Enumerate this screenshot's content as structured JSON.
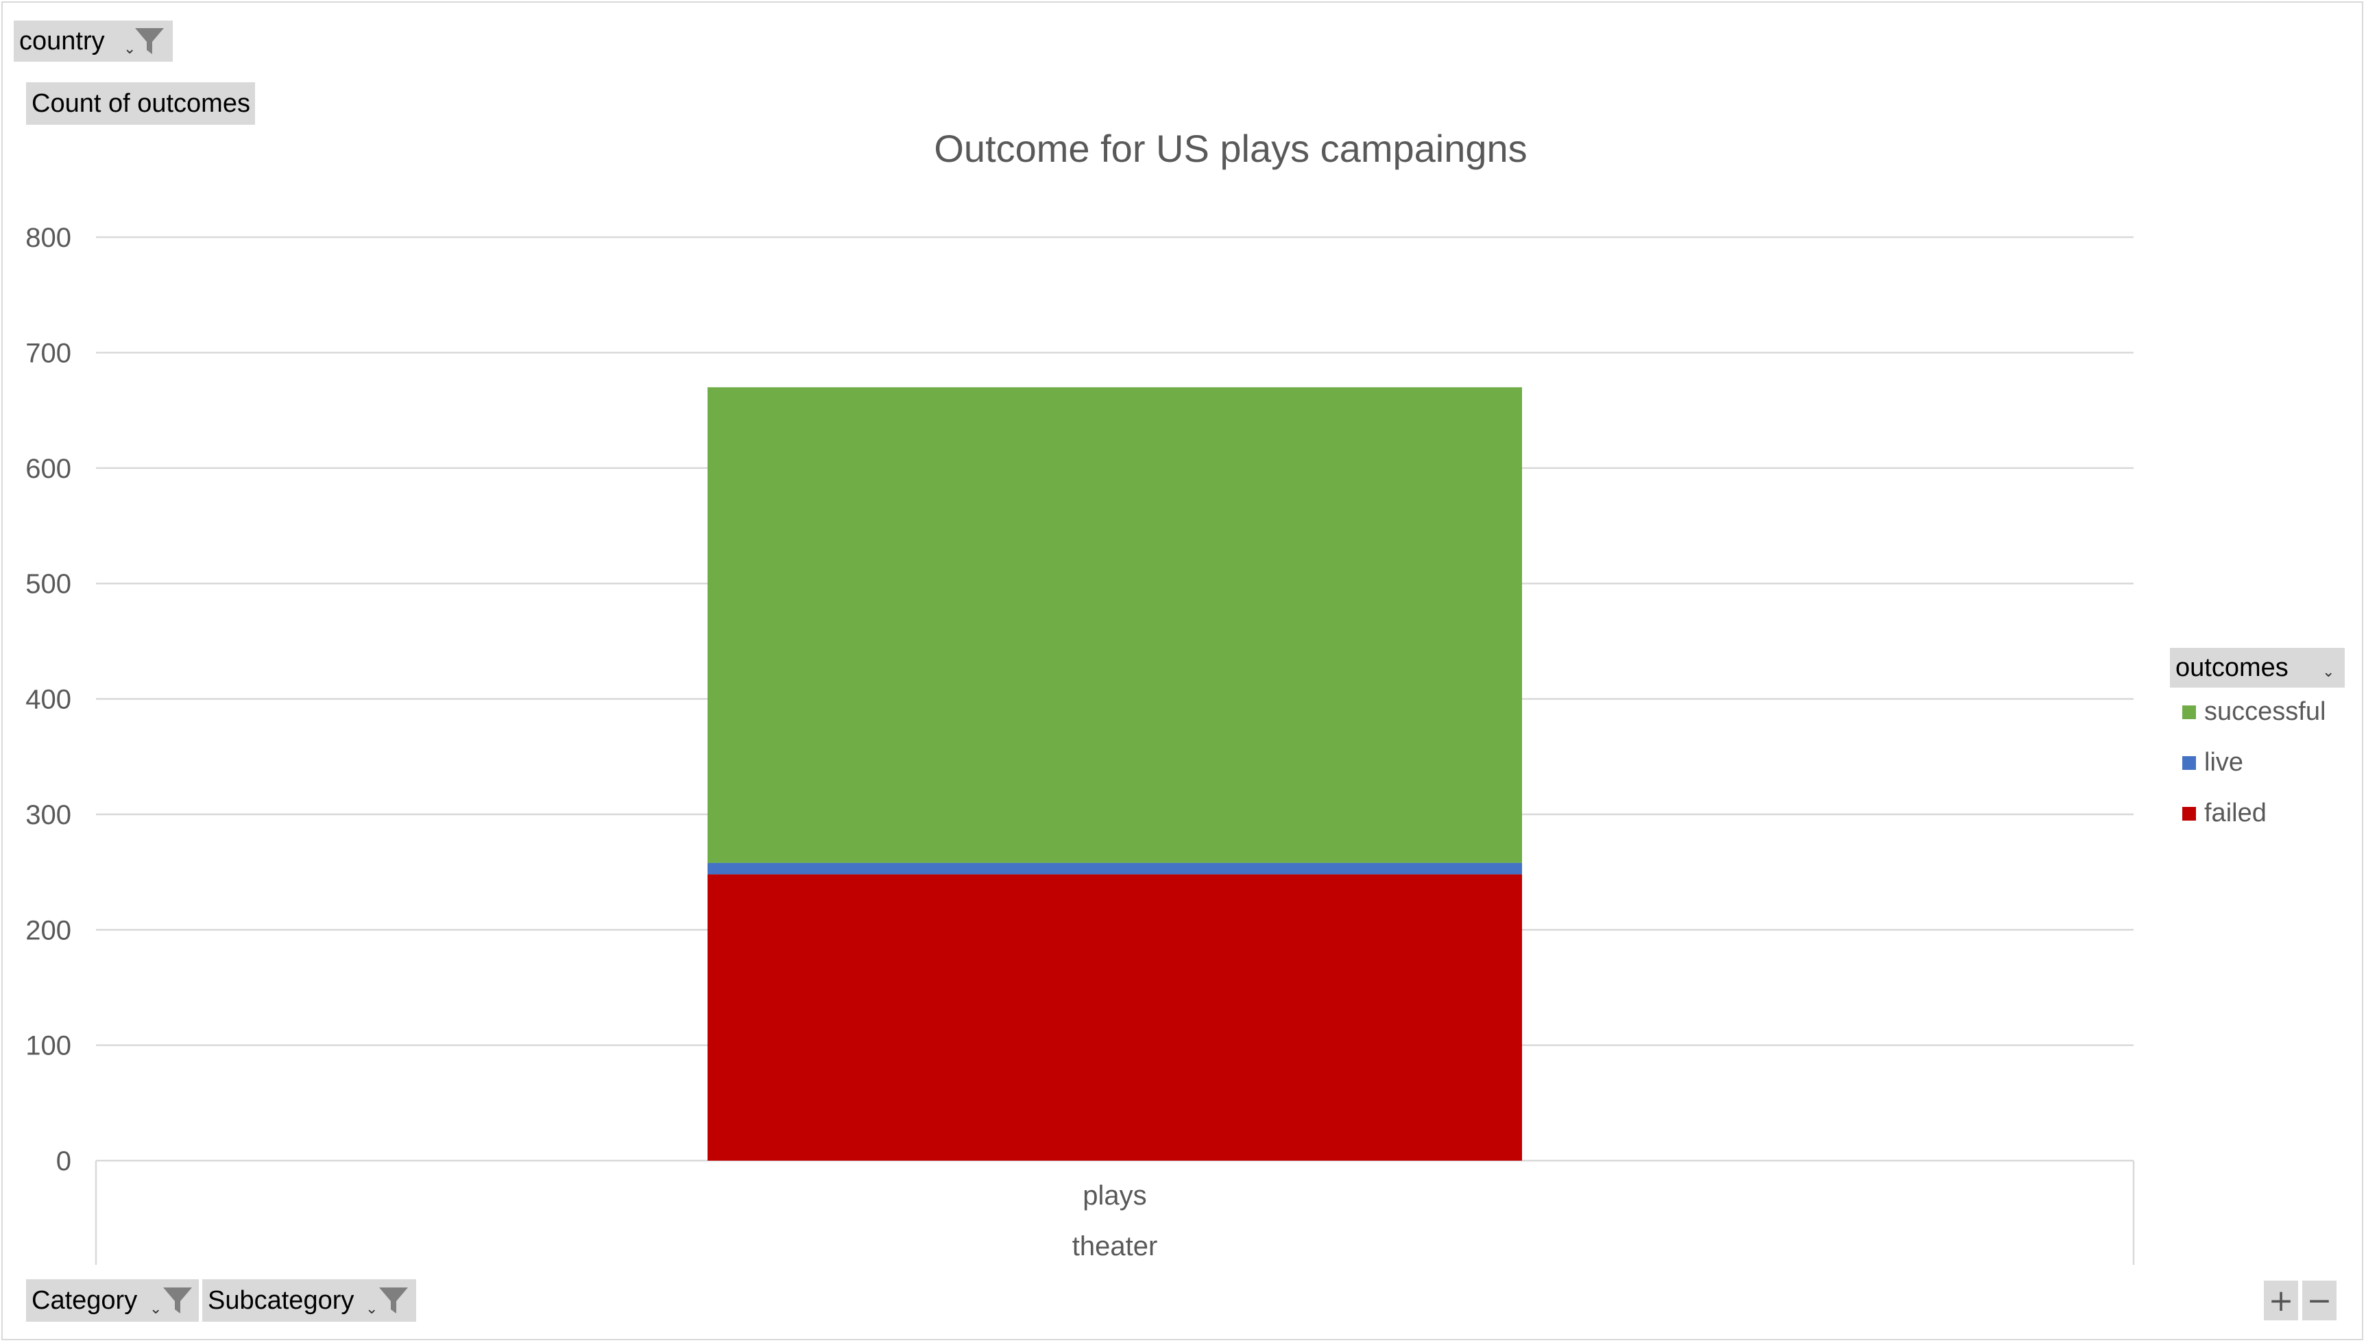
{
  "filters": {
    "country_label": "country",
    "values_label": "Count of outcomes",
    "category_label": "Category",
    "subcategory_label": "Subcategory",
    "legend_field_label": "outcomes"
  },
  "zoom": {
    "plus": "+",
    "minus": "−"
  },
  "colors": {
    "successful": "#70ad47",
    "live": "#4472c4",
    "failed": "#c00000",
    "grid": "#d9d9d9",
    "text": "#595959"
  },
  "chart_data": {
    "type": "bar",
    "stacked": true,
    "title": "Outcome for US plays campaingns",
    "categories": [
      "plays"
    ],
    "category_group": "theater",
    "ylim": [
      0,
      800
    ],
    "yticks": [
      0,
      100,
      200,
      300,
      400,
      500,
      600,
      700,
      800
    ],
    "grid": true,
    "legend_position": "right",
    "series": [
      {
        "name": "failed",
        "values": [
          248
        ],
        "color": "#c00000"
      },
      {
        "name": "live",
        "values": [
          10
        ],
        "color": "#4472c4"
      },
      {
        "name": "successful",
        "values": [
          412
        ],
        "color": "#70ad47"
      }
    ],
    "legend_order": [
      "successful",
      "live",
      "failed"
    ]
  }
}
